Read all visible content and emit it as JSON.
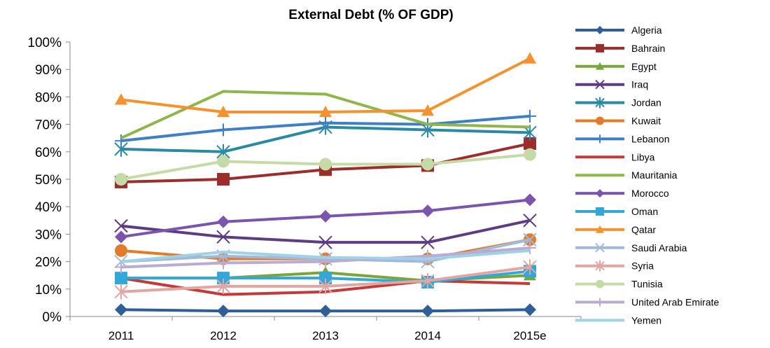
{
  "chart_data": {
    "type": "line",
    "title": "External Debt (% OF GDP)",
    "xlabel": "",
    "ylabel": "",
    "ylim": [
      0,
      100
    ],
    "y_ticks": [
      "0%",
      "10%",
      "20%",
      "30%",
      "40%",
      "50%",
      "60%",
      "70%",
      "80%",
      "90%",
      "100%"
    ],
    "categories": [
      "2011",
      "2012",
      "2013",
      "2014",
      "2015e"
    ],
    "grid": false,
    "legend_position": "right",
    "series": [
      {
        "name": "Algeria",
        "color": "#2f5f98",
        "marker": "diamond",
        "values": [
          2.5,
          2,
          2,
          2,
          2.5
        ]
      },
      {
        "name": "Bahrain",
        "color": "#9b2d2a",
        "marker": "square",
        "values": [
          49,
          50,
          53.5,
          55,
          63
        ]
      },
      {
        "name": "Egypt",
        "color": "#79a63b",
        "marker": "triangle",
        "values": [
          14,
          14,
          16,
          13,
          15
        ]
      },
      {
        "name": "Iraq",
        "color": "#5e3b83",
        "marker": "x",
        "values": [
          33,
          29,
          27,
          27,
          35
        ]
      },
      {
        "name": "Jordan",
        "color": "#2a8aa5",
        "marker": "asterisk",
        "values": [
          61,
          60,
          69,
          68,
          67
        ]
      },
      {
        "name": "Kuwait",
        "color": "#e07c2a",
        "marker": "circle",
        "values": [
          24,
          21,
          21,
          21,
          28
        ]
      },
      {
        "name": "Lebanon",
        "color": "#3f7fc4",
        "marker": "plus",
        "values": [
          64,
          68,
          70.5,
          70,
          73
        ]
      },
      {
        "name": "Libya",
        "color": "#c23b3b",
        "marker": "none",
        "values": [
          14,
          8,
          9,
          13,
          12
        ]
      },
      {
        "name": "Mauritania",
        "color": "#8fb64a",
        "marker": "none",
        "values": [
          65,
          82,
          81,
          70,
          69
        ]
      },
      {
        "name": "Morocco",
        "color": "#7b54ad",
        "marker": "diamond",
        "values": [
          29,
          34.5,
          36.5,
          38.5,
          42.5
        ]
      },
      {
        "name": "Oman",
        "color": "#33a8d8",
        "marker": "square",
        "values": [
          14,
          14,
          14,
          12.5,
          16.5
        ]
      },
      {
        "name": "Qatar",
        "color": "#f5922f",
        "marker": "triangle",
        "values": [
          79,
          74.5,
          74.5,
          75,
          94
        ]
      },
      {
        "name": "Saudi Arabia",
        "color": "#a3b9d9",
        "marker": "x",
        "values": [
          20,
          22,
          21,
          20,
          28
        ]
      },
      {
        "name": "Syria",
        "color": "#e3a5a1",
        "marker": "asterisk",
        "values": [
          9,
          11,
          11,
          13,
          18
        ]
      },
      {
        "name": "Tunisia",
        "color": "#c5dba7",
        "marker": "circle",
        "values": [
          50,
          56.5,
          55.5,
          55.5,
          59
        ]
      },
      {
        "name": "United Arab Emirate",
        "color": "#baabd3",
        "marker": "plus",
        "values": [
          18,
          19.5,
          20,
          22,
          25
        ]
      },
      {
        "name": "Yemen",
        "color": "#9fd2e8",
        "marker": "none",
        "values": [
          20,
          23.5,
          21.5,
          21,
          24
        ]
      }
    ]
  }
}
